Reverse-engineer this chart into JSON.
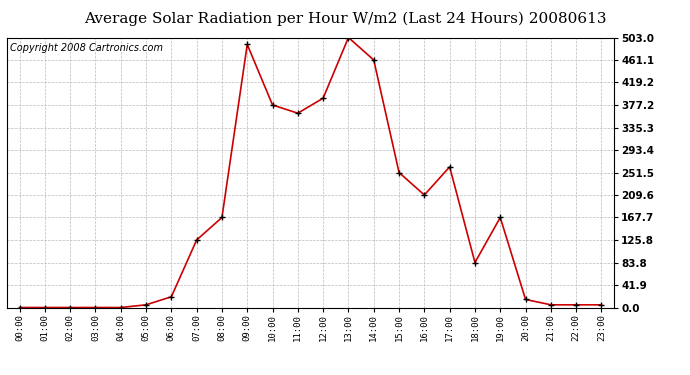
{
  "title": "Average Solar Radiation per Hour W/m2 (Last 24 Hours) 20080613",
  "copyright": "Copyright 2008 Cartronics.com",
  "x_labels": [
    "00:00",
    "01:00",
    "02:00",
    "03:00",
    "04:00",
    "05:00",
    "06:00",
    "07:00",
    "08:00",
    "09:00",
    "10:00",
    "11:00",
    "12:00",
    "13:00",
    "14:00",
    "15:00",
    "16:00",
    "17:00",
    "18:00",
    "19:00",
    "20:00",
    "21:00",
    "22:00",
    "23:00"
  ],
  "y_values": [
    0.0,
    0.0,
    0.0,
    0.0,
    0.0,
    5.0,
    20.0,
    125.8,
    167.7,
    490.0,
    377.2,
    362.0,
    390.0,
    503.0,
    461.1,
    251.5,
    209.6,
    262.0,
    83.8,
    167.7,
    15.0,
    5.0,
    5.0,
    5.0
  ],
  "y_ticks": [
    0.0,
    41.9,
    83.8,
    125.8,
    167.7,
    209.6,
    251.5,
    293.4,
    335.3,
    377.2,
    419.2,
    461.1,
    503.0
  ],
  "y_max": 503.0,
  "y_min": 0.0,
  "line_color": "#cc0000",
  "marker_color": "#000000",
  "background_color": "#ffffff",
  "grid_color": "#bbbbbb",
  "title_fontsize": 11,
  "copyright_fontsize": 7
}
